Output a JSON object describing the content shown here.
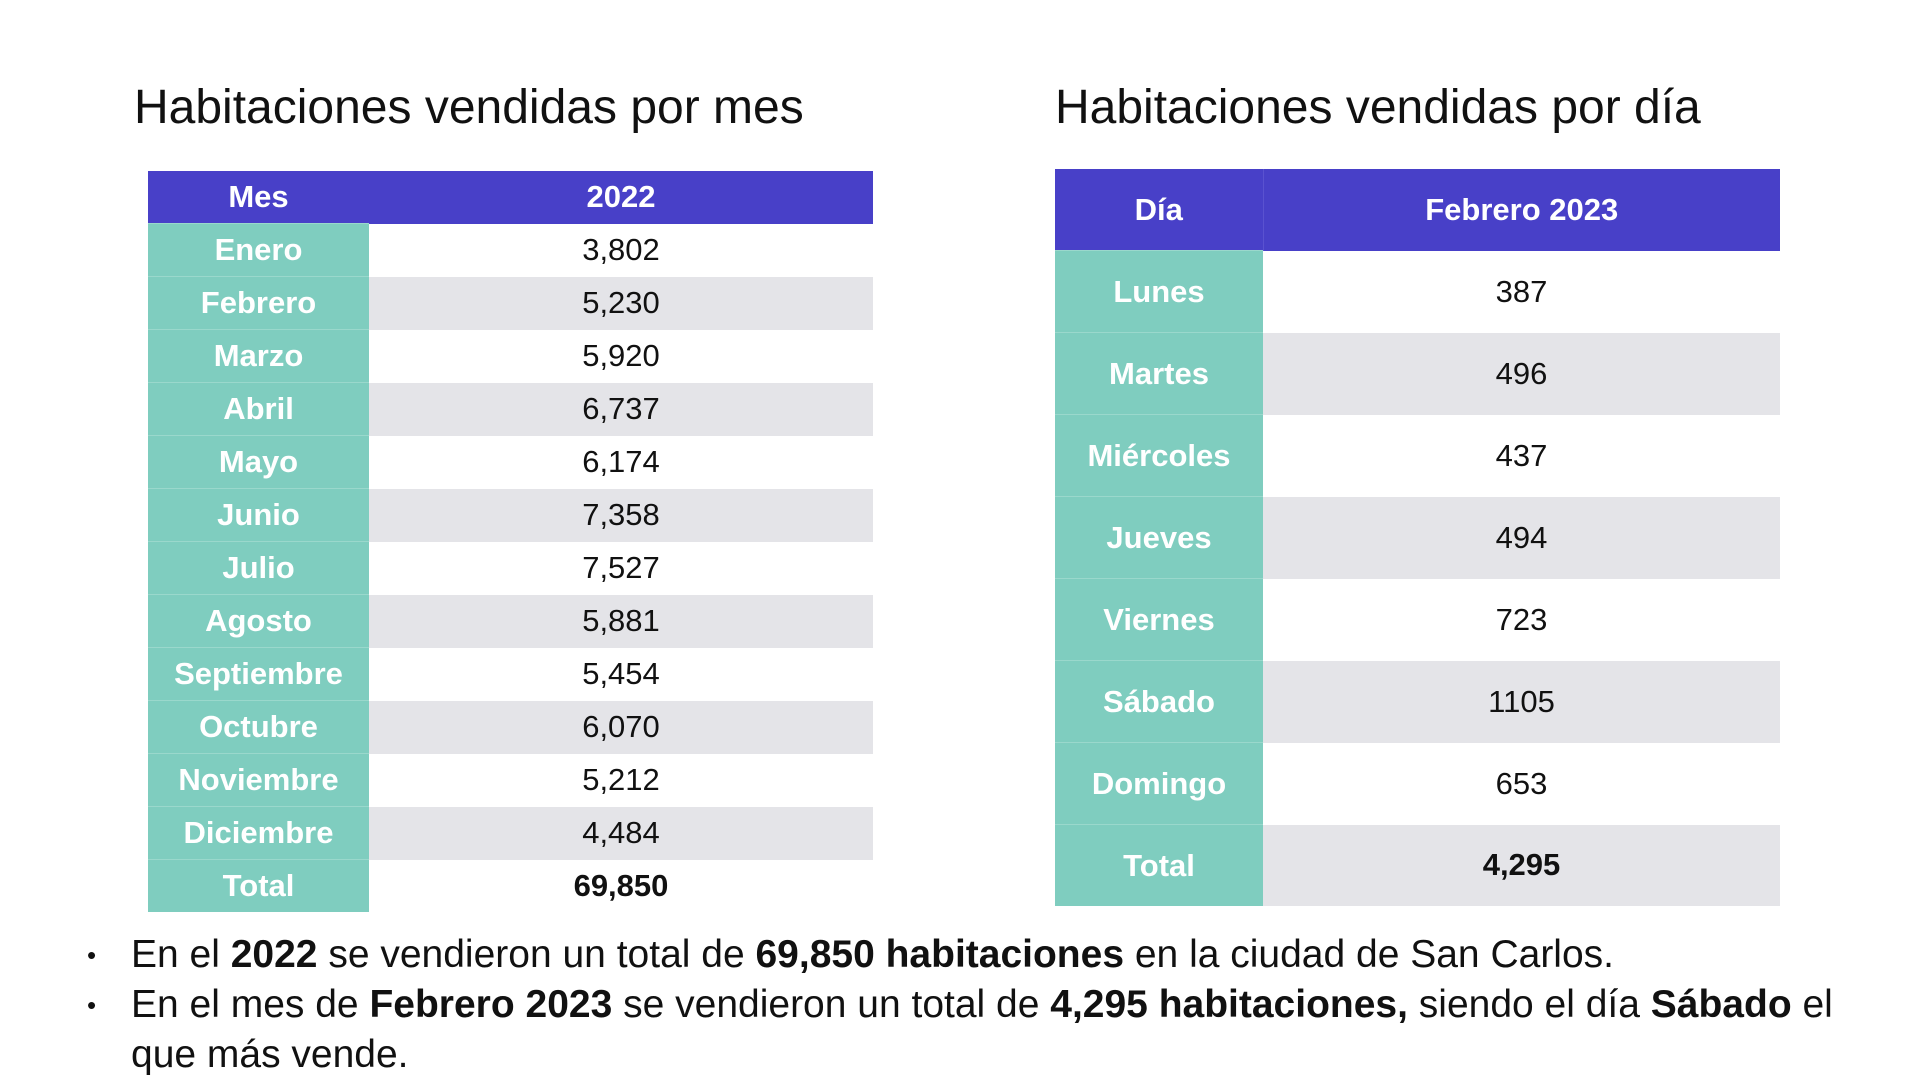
{
  "monthly": {
    "title": "Habitaciones vendidas por mes",
    "headers": [
      "Mes",
      "2022"
    ],
    "rows": [
      {
        "label": "Enero",
        "value": "3,802"
      },
      {
        "label": "Febrero",
        "value": "5,230"
      },
      {
        "label": "Marzo",
        "value": "5,920"
      },
      {
        "label": "Abril",
        "value": "6,737"
      },
      {
        "label": "Mayo",
        "value": "6,174"
      },
      {
        "label": "Junio",
        "value": "7,358"
      },
      {
        "label": "Julio",
        "value": "7,527"
      },
      {
        "label": "Agosto",
        "value": "5,881"
      },
      {
        "label": "Septiembre",
        "value": "5,454"
      },
      {
        "label": "Octubre",
        "value": "6,070"
      },
      {
        "label": "Noviembre",
        "value": "5,212"
      },
      {
        "label": "Diciembre",
        "value": "4,484"
      },
      {
        "label": "Total",
        "value": "69,850"
      }
    ]
  },
  "daily": {
    "title": "Habitaciones vendidas por día",
    "headers": [
      "Día",
      "Febrero 2023"
    ],
    "rows": [
      {
        "label": "Lunes",
        "value": "387"
      },
      {
        "label": "Martes",
        "value": "496"
      },
      {
        "label": "Miércoles",
        "value": "437"
      },
      {
        "label": "Jueves",
        "value": "494"
      },
      {
        "label": "Viernes",
        "value": "723"
      },
      {
        "label": "Sábado",
        "value": "1105"
      },
      {
        "label": "Domingo",
        "value": "653"
      },
      {
        "label": "Total",
        "value": "4,295"
      }
    ]
  },
  "bullets": [
    [
      "En el ",
      "2022",
      " se vendieron un total de ",
      "69,850 habitaciones",
      " en la ciudad de San Carlos."
    ],
    [
      "En el mes de ",
      "Febrero 2023",
      " se vendieron un total de ",
      "4,295 habitaciones,",
      " siendo el día ",
      "Sábado",
      " el que más vende."
    ]
  ],
  "bullet_symbol": "•",
  "colors": {
    "header": "#4840c8",
    "label_column": "#7fcdbf",
    "stripe": "#e4e4e8"
  }
}
